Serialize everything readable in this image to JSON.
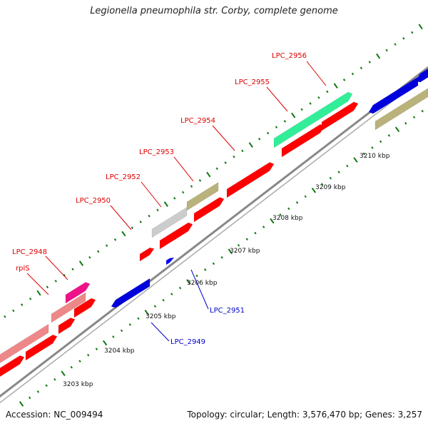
{
  "title": "Legionella pneumophila str. Corby, complete genome",
  "accession": "Accession: NC_009494",
  "summary": "Topology: circular; Length: 3,576,470 bp; Genes: 3,257",
  "colors": {
    "cds": "#ff0000",
    "rrna": "#0000dd",
    "trna": "#0000ff",
    "olive": "#b9b27a",
    "green": "#33ee99",
    "gray": "#cccccc",
    "salmon": "#ee8888",
    "magenta": "#ee1188",
    "label_red": "#dd0000",
    "label_blue": "#0000cc",
    "tick_green": "#117711",
    "backbone": "#888888"
  },
  "tick_labels": [
    "3203 kbp",
    "3204 kbp",
    "3205 kbp",
    "3206 kbp",
    "3207 kbp",
    "3208 kbp",
    "3209 kbp",
    "3210 kbp"
  ],
  "gene_labels_top": [
    "rplS",
    "LPC_2948",
    "LPC_2950",
    "LPC_2952",
    "LPC_2953",
    "LPC_2954",
    "LPC_2955",
    "LPC_2956"
  ],
  "gene_labels_bottom": [
    "LPC_2949",
    "LPC_2951"
  ]
}
